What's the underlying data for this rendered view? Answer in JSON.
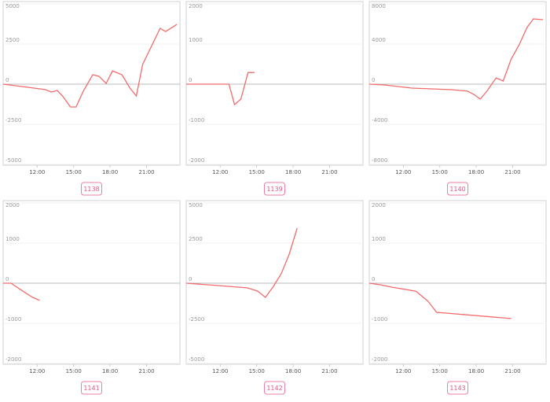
{
  "chart_data": [
    {
      "type": "line",
      "label": "1138",
      "color": "#f26b6b",
      "x": [
        9.2,
        10.83,
        12.66,
        13.18,
        13.64,
        14.09,
        14.74,
        15.2,
        15.79,
        16.57,
        17.09,
        17.68,
        18.2,
        18.98,
        19.64,
        20.16,
        20.68,
        22.12,
        22.57,
        23.49
      ],
      "values": [
        0,
        -150,
        -340,
        -490,
        -390,
        -735,
        -1420,
        -1420,
        -440,
        590,
        490,
        50,
        830,
        590,
        -245,
        -735,
        1225,
        3480,
        3280,
        3720
      ],
      "xlim": [
        9.2,
        23.75
      ],
      "xticks": [
        {
          "value": 12,
          "label": "12:00"
        },
        {
          "value": 15,
          "label": "15:00"
        },
        {
          "value": 18,
          "label": "18:00"
        },
        {
          "value": 21,
          "label": "21:00"
        }
      ],
      "ylim": [
        -5000,
        5000
      ],
      "yticks": [
        5000,
        2500,
        0,
        -2500,
        -5000
      ],
      "grid": true
    },
    {
      "type": "line",
      "label": "1139",
      "color": "#f26b6b",
      "x": [
        9.2,
        12.72,
        13.18,
        13.7,
        14.29,
        14.81
      ],
      "values": [
        0,
        0,
        -510,
        -370,
        290,
        290
      ],
      "xlim": [
        9.2,
        23.75
      ],
      "xticks": [
        {
          "value": 12,
          "label": "12:00"
        },
        {
          "value": 15,
          "label": "15:00"
        },
        {
          "value": 18,
          "label": "18:00"
        },
        {
          "value": 21,
          "label": "21:00"
        }
      ],
      "ylim": [
        -2000,
        2000
      ],
      "yticks": [
        2000,
        1000,
        0,
        -1000,
        -2000
      ],
      "grid": true
    },
    {
      "type": "line",
      "label": "1140",
      "color": "#f26b6b",
      "x": [
        9.2,
        10.44,
        12.72,
        15.98,
        17.29,
        17.81,
        18.33,
        18.92,
        19.64,
        20.22,
        20.88,
        21.53,
        22.18,
        22.7,
        23.49
      ],
      "values": [
        0,
        -80,
        -390,
        -550,
        -700,
        -1020,
        -1490,
        -630,
        630,
        310,
        2510,
        3920,
        5650,
        6510,
        6430
      ],
      "xlim": [
        9.2,
        23.75
      ],
      "xticks": [
        {
          "value": 12,
          "label": "12:00"
        },
        {
          "value": 15,
          "label": "15:00"
        },
        {
          "value": 18,
          "label": "18:00"
        },
        {
          "value": 21,
          "label": "21:00"
        }
      ],
      "ylim": [
        -8000,
        8000
      ],
      "yticks": [
        8000,
        4000,
        0,
        -4000,
        -8000
      ],
      "grid": true
    },
    {
      "type": "line",
      "label": "1141",
      "color": "#f26b6b",
      "x": [
        9.2,
        9.85,
        10.83,
        11.61,
        12.2
      ],
      "values": [
        0,
        0,
        -200,
        -350,
        -430
      ],
      "xlim": [
        9.2,
        23.75
      ],
      "xticks": [
        {
          "value": 12,
          "label": "12:00"
        },
        {
          "value": 15,
          "label": "15:00"
        },
        {
          "value": 18,
          "label": "18:00"
        },
        {
          "value": 21,
          "label": "21:00"
        }
      ],
      "ylim": [
        -2000,
        2000
      ],
      "yticks": [
        2000,
        1000,
        0,
        -1000,
        -2000
      ],
      "grid": true
    },
    {
      "type": "line",
      "label": "1142",
      "color": "#f26b6b",
      "x": [
        9.2,
        11.94,
        14.22,
        15.07,
        15.72,
        16.37,
        17.02,
        17.68,
        18.33
      ],
      "values": [
        0,
        -150,
        -290,
        -490,
        -880,
        -200,
        590,
        1810,
        3430
      ],
      "xlim": [
        9.2,
        23.75
      ],
      "xticks": [
        {
          "value": 12,
          "label": "12:00"
        },
        {
          "value": 15,
          "label": "15:00"
        },
        {
          "value": 18,
          "label": "18:00"
        },
        {
          "value": 21,
          "label": "21:00"
        }
      ],
      "ylim": [
        -5000,
        5000
      ],
      "yticks": [
        5000,
        2500,
        0,
        -2500,
        -5000
      ],
      "grid": true
    },
    {
      "type": "line",
      "label": "1143",
      "color": "#f26b6b",
      "x": [
        9.2,
        10.11,
        11.09,
        13.05,
        14.03,
        14.74,
        20.88
      ],
      "values": [
        0,
        -40,
        -100,
        -200,
        -450,
        -725,
        -880
      ],
      "xlim": [
        9.2,
        23.75
      ],
      "xticks": [
        {
          "value": 12,
          "label": "12:00"
        },
        {
          "value": 15,
          "label": "15:00"
        },
        {
          "value": 18,
          "label": "18:00"
        },
        {
          "value": 21,
          "label": "21:00"
        }
      ],
      "ylim": [
        -2000,
        2000
      ],
      "yticks": [
        2000,
        1000,
        0,
        -1000,
        -2000
      ],
      "grid": true
    }
  ]
}
